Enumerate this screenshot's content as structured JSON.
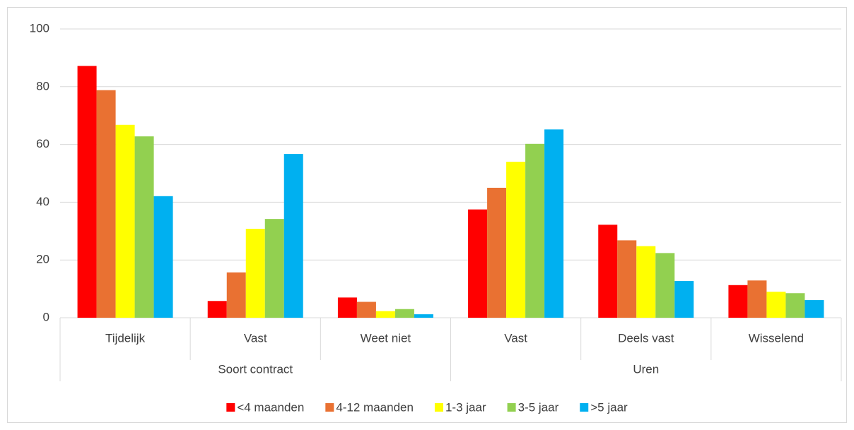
{
  "chart_data": {
    "type": "bar",
    "category_groups": [
      {
        "name": "Soort contract",
        "categories": [
          "Tijdelijk",
          "Vast",
          "Weet niet"
        ]
      },
      {
        "name": "Uren",
        "categories": [
          "Vast",
          "Deels vast",
          "Wisselend"
        ]
      }
    ],
    "series": [
      {
        "name": "<4 maanden",
        "color": "#ff0000",
        "values": [
          87.2,
          5.8,
          7.0,
          37.5,
          32.2,
          11.3
        ]
      },
      {
        "name": "4-12 maanden",
        "color": "#e97132",
        "values": [
          78.8,
          15.7,
          5.5,
          45.0,
          26.8,
          12.9
        ]
      },
      {
        "name": "1-3 jaar",
        "color": "#ffff00",
        "values": [
          66.8,
          30.8,
          2.3,
          54.0,
          24.8,
          9.0
        ]
      },
      {
        "name": "3-5 jaar",
        "color": "#92d050",
        "values": [
          62.8,
          34.2,
          3.0,
          60.2,
          22.4,
          8.5
        ]
      },
      {
        "name": ">5 jaar",
        "color": "#00b0f0",
        "values": [
          42.1,
          56.7,
          1.2,
          65.2,
          12.7,
          6.1
        ]
      }
    ],
    "ylim": [
      0,
      100
    ],
    "yticks": [
      0,
      20,
      40,
      60,
      80,
      100
    ],
    "grid": true,
    "legend": "bottom"
  }
}
